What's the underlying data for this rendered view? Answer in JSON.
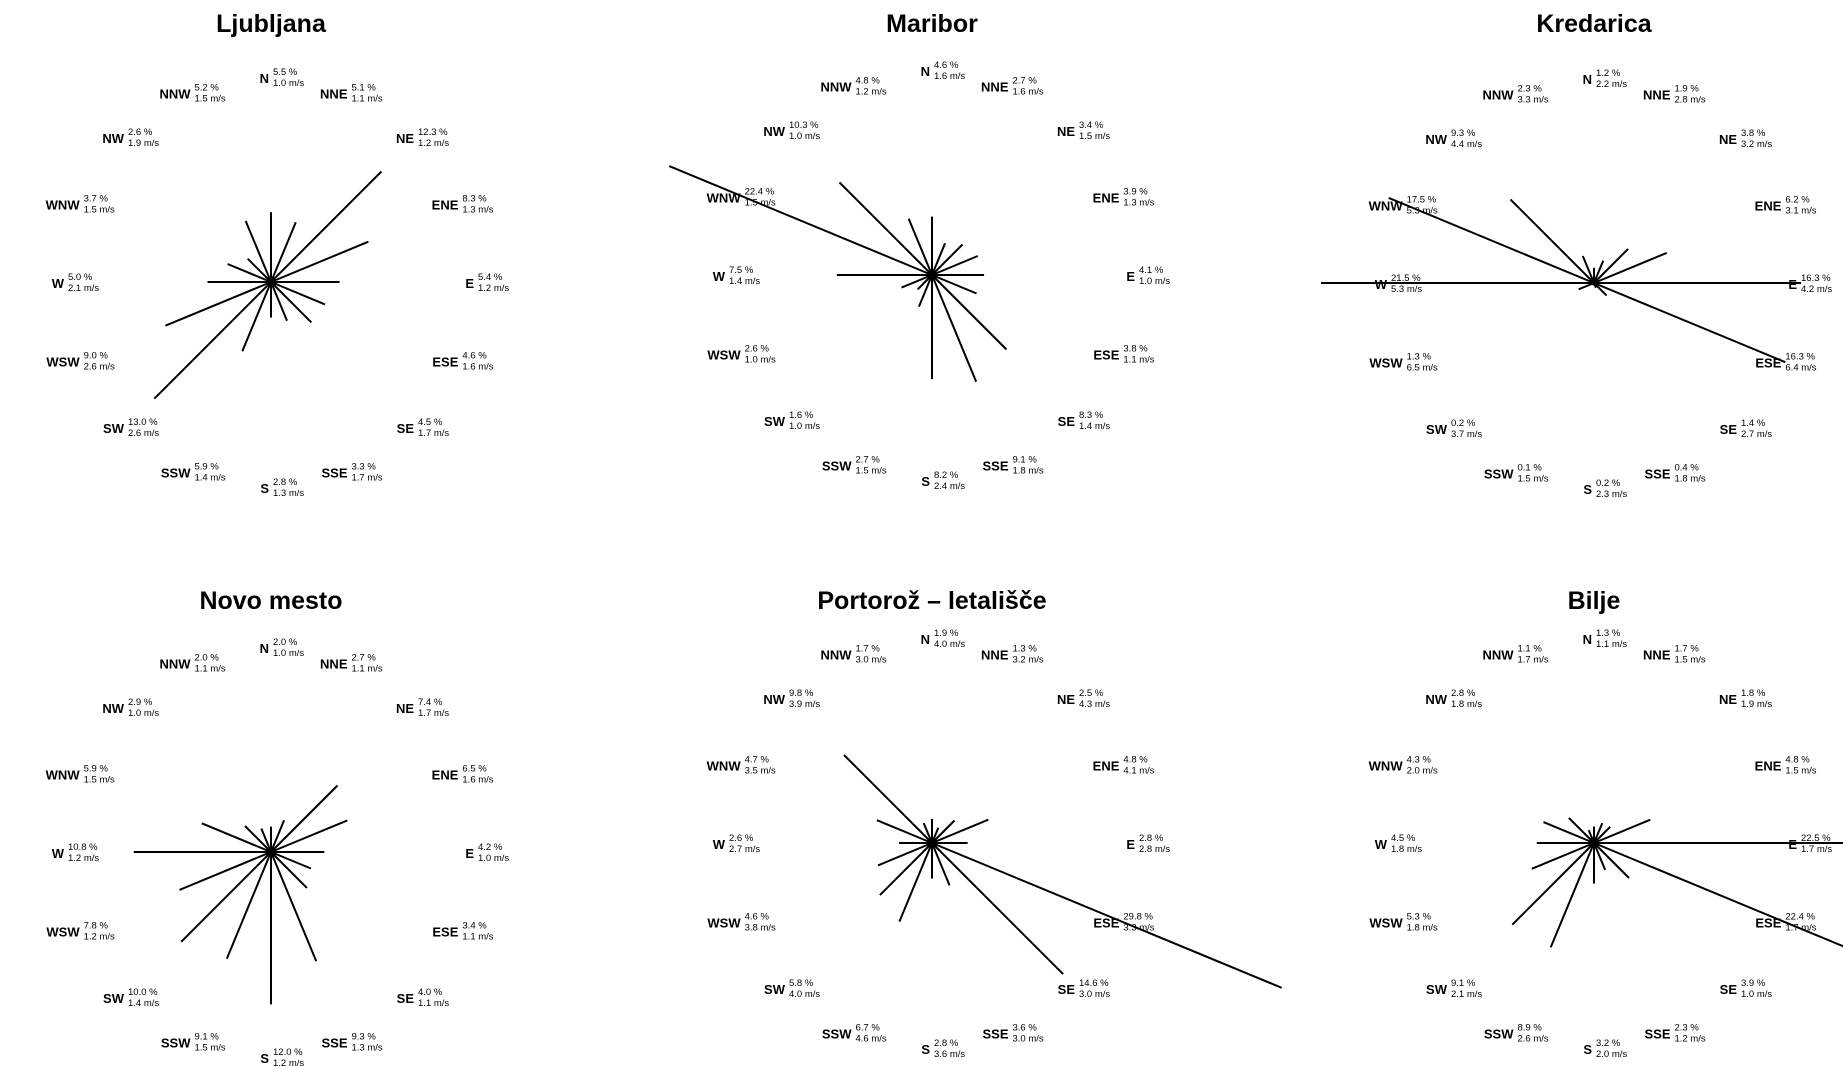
{
  "chart_data": [
    {
      "type": "wind_rose",
      "title": "Ljubljana",
      "directions": [
        {
          "dir": "N",
          "freq": 5.5,
          "freq_label": "5.5 %",
          "speed_label": "1.0 m/s"
        },
        {
          "dir": "NNE",
          "freq": 5.1,
          "freq_label": "5.1 %",
          "speed_label": "1.1 m/s"
        },
        {
          "dir": "NE",
          "freq": 12.3,
          "freq_label": "12.3 %",
          "speed_label": "1.2 m/s"
        },
        {
          "dir": "ENE",
          "freq": 8.3,
          "freq_label": "8.3 %",
          "speed_label": "1.3 m/s"
        },
        {
          "dir": "E",
          "freq": 5.4,
          "freq_label": "5.4 %",
          "speed_label": "1.2 m/s"
        },
        {
          "dir": "ESE",
          "freq": 4.6,
          "freq_label": "4.6 %",
          "speed_label": "1.6 m/s"
        },
        {
          "dir": "SE",
          "freq": 4.5,
          "freq_label": "4.5 %",
          "speed_label": "1.7 m/s"
        },
        {
          "dir": "SSE",
          "freq": 3.3,
          "freq_label": "3.3 %",
          "speed_label": "1.7 m/s"
        },
        {
          "dir": "S",
          "freq": 2.8,
          "freq_label": "2.8 %",
          "speed_label": "1.3 m/s"
        },
        {
          "dir": "SSW",
          "freq": 5.9,
          "freq_label": "5.9 %",
          "speed_label": "1.4 m/s"
        },
        {
          "dir": "SW",
          "freq": 13.0,
          "freq_label": "13.0 %",
          "speed_label": "2.6 m/s"
        },
        {
          "dir": "WSW",
          "freq": 9.0,
          "freq_label": "9.0 %",
          "speed_label": "2.6 m/s"
        },
        {
          "dir": "W",
          "freq": 5.0,
          "freq_label": "5.0 %",
          "speed_label": "2.1 m/s"
        },
        {
          "dir": "WNW",
          "freq": 3.7,
          "freq_label": "3.7 %",
          "speed_label": "1.5 m/s"
        },
        {
          "dir": "NW",
          "freq": 2.6,
          "freq_label": "2.6 %",
          "speed_label": "1.9 m/s"
        },
        {
          "dir": "NNW",
          "freq": 5.2,
          "freq_label": "5.2 %",
          "speed_label": "1.5 m/s"
        }
      ]
    },
    {
      "type": "wind_rose",
      "title": "Maribor",
      "directions": [
        {
          "dir": "N",
          "freq": 4.6,
          "freq_label": "4.6 %",
          "speed_label": "1.6 m/s"
        },
        {
          "dir": "NNE",
          "freq": 2.7,
          "freq_label": "2.7 %",
          "speed_label": "1.6 m/s"
        },
        {
          "dir": "NE",
          "freq": 3.4,
          "freq_label": "3.4 %",
          "speed_label": "1.5 m/s"
        },
        {
          "dir": "ENE",
          "freq": 3.9,
          "freq_label": "3.9 %",
          "speed_label": "1.3 m/s"
        },
        {
          "dir": "E",
          "freq": 4.1,
          "freq_label": "4.1 %",
          "speed_label": "1.0 m/s"
        },
        {
          "dir": "ESE",
          "freq": 3.8,
          "freq_label": "3.8 %",
          "speed_label": "1.1 m/s"
        },
        {
          "dir": "SE",
          "freq": 8.3,
          "freq_label": "8.3 %",
          "speed_label": "1.4 m/s"
        },
        {
          "dir": "SSE",
          "freq": 9.1,
          "freq_label": "9.1 %",
          "speed_label": "1.8 m/s"
        },
        {
          "dir": "S",
          "freq": 8.2,
          "freq_label": "8.2 %",
          "speed_label": "2.4 m/s"
        },
        {
          "dir": "SSW",
          "freq": 2.7,
          "freq_label": "2.7 %",
          "speed_label": "1.5 m/s"
        },
        {
          "dir": "SW",
          "freq": 1.6,
          "freq_label": "1.6 %",
          "speed_label": "1.0 m/s"
        },
        {
          "dir": "WSW",
          "freq": 2.6,
          "freq_label": "2.6 %",
          "speed_label": "1.0 m/s"
        },
        {
          "dir": "W",
          "freq": 7.5,
          "freq_label": "7.5 %",
          "speed_label": "1.4 m/s"
        },
        {
          "dir": "WNW",
          "freq": 22.4,
          "freq_label": "22.4 %",
          "speed_label": "1.5 m/s"
        },
        {
          "dir": "NW",
          "freq": 10.3,
          "freq_label": "10.3 %",
          "speed_label": "1.0 m/s"
        },
        {
          "dir": "NNW",
          "freq": 4.8,
          "freq_label": "4.8 %",
          "speed_label": "1.2 m/s"
        }
      ]
    },
    {
      "type": "wind_rose",
      "title": "Kredarica",
      "directions": [
        {
          "dir": "N",
          "freq": 1.2,
          "freq_label": "1.2 %",
          "speed_label": "2.2 m/s"
        },
        {
          "dir": "NNE",
          "freq": 1.9,
          "freq_label": "1.9 %",
          "speed_label": "2.8 m/s"
        },
        {
          "dir": "NE",
          "freq": 3.8,
          "freq_label": "3.8 %",
          "speed_label": "3.2 m/s"
        },
        {
          "dir": "ENE",
          "freq": 6.2,
          "freq_label": "6.2 %",
          "speed_label": "3.1 m/s"
        },
        {
          "dir": "E",
          "freq": 16.3,
          "freq_label": "16.3 %",
          "speed_label": "4.2 m/s"
        },
        {
          "dir": "ESE",
          "freq": 16.3,
          "freq_label": "16.3 %",
          "speed_label": "6.4 m/s"
        },
        {
          "dir": "SE",
          "freq": 1.4,
          "freq_label": "1.4 %",
          "speed_label": "2.7 m/s"
        },
        {
          "dir": "SSE",
          "freq": 0.4,
          "freq_label": "0.4 %",
          "speed_label": "1.8 m/s"
        },
        {
          "dir": "S",
          "freq": 0.2,
          "freq_label": "0.2 %",
          "speed_label": "2.3 m/s"
        },
        {
          "dir": "SSW",
          "freq": 0.1,
          "freq_label": "0.1 %",
          "speed_label": "1.5 m/s"
        },
        {
          "dir": "SW",
          "freq": 0.2,
          "freq_label": "0.2 %",
          "speed_label": "3.7 m/s"
        },
        {
          "dir": "WSW",
          "freq": 1.3,
          "freq_label": "1.3 %",
          "speed_label": "6.5 m/s"
        },
        {
          "dir": "W",
          "freq": 21.5,
          "freq_label": "21.5 %",
          "speed_label": "5.3 m/s"
        },
        {
          "dir": "WNW",
          "freq": 17.5,
          "freq_label": "17.5 %",
          "speed_label": "5.3 m/s"
        },
        {
          "dir": "NW",
          "freq": 9.3,
          "freq_label": "9.3 %",
          "speed_label": "4.4 m/s"
        },
        {
          "dir": "NNW",
          "freq": 2.3,
          "freq_label": "2.3 %",
          "speed_label": "3.3 m/s"
        }
      ]
    },
    {
      "type": "wind_rose",
      "title": "Novo mesto",
      "directions": [
        {
          "dir": "N",
          "freq": 2.0,
          "freq_label": "2.0 %",
          "speed_label": "1.0 m/s"
        },
        {
          "dir": "NNE",
          "freq": 2.7,
          "freq_label": "2.7 %",
          "speed_label": "1.1 m/s"
        },
        {
          "dir": "NE",
          "freq": 7.4,
          "freq_label": "7.4 %",
          "speed_label": "1.7 m/s"
        },
        {
          "dir": "ENE",
          "freq": 6.5,
          "freq_label": "6.5 %",
          "speed_label": "1.6 m/s"
        },
        {
          "dir": "E",
          "freq": 4.2,
          "freq_label": "4.2 %",
          "speed_label": "1.0 m/s"
        },
        {
          "dir": "ESE",
          "freq": 3.4,
          "freq_label": "3.4 %",
          "speed_label": "1.1 m/s"
        },
        {
          "dir": "SE",
          "freq": 4.0,
          "freq_label": "4.0 %",
          "speed_label": "1.1 m/s"
        },
        {
          "dir": "SSE",
          "freq": 9.3,
          "freq_label": "9.3 %",
          "speed_label": "1.3 m/s"
        },
        {
          "dir": "S",
          "freq": 12.0,
          "freq_label": "12.0 %",
          "speed_label": "1.2 m/s"
        },
        {
          "dir": "SSW",
          "freq": 9.1,
          "freq_label": "9.1 %",
          "speed_label": "1.5 m/s"
        },
        {
          "dir": "SW",
          "freq": 10.0,
          "freq_label": "10.0 %",
          "speed_label": "1.4 m/s"
        },
        {
          "dir": "WSW",
          "freq": 7.8,
          "freq_label": "7.8 %",
          "speed_label": "1.2 m/s"
        },
        {
          "dir": "W",
          "freq": 10.8,
          "freq_label": "10.8 %",
          "speed_label": "1.2 m/s"
        },
        {
          "dir": "WNW",
          "freq": 5.9,
          "freq_label": "5.9 %",
          "speed_label": "1.5 m/s"
        },
        {
          "dir": "NW",
          "freq": 2.9,
          "freq_label": "2.9 %",
          "speed_label": "1.0 m/s"
        },
        {
          "dir": "NNW",
          "freq": 2.0,
          "freq_label": "2.0 %",
          "speed_label": "1.1 m/s"
        }
      ]
    },
    {
      "type": "wind_rose",
      "title": "Portorož – letališče",
      "directions": [
        {
          "dir": "N",
          "freq": 1.9,
          "freq_label": "1.9 %",
          "speed_label": "4.0 m/s"
        },
        {
          "dir": "NNE",
          "freq": 1.3,
          "freq_label": "1.3 %",
          "speed_label": "3.2 m/s"
        },
        {
          "dir": "NE",
          "freq": 2.5,
          "freq_label": "2.5 %",
          "speed_label": "4.3 m/s"
        },
        {
          "dir": "ENE",
          "freq": 4.8,
          "freq_label": "4.8 %",
          "speed_label": "4.1 m/s"
        },
        {
          "dir": "E",
          "freq": 2.8,
          "freq_label": "2.8 %",
          "speed_label": "2.8 m/s"
        },
        {
          "dir": "ESE",
          "freq": 29.8,
          "freq_label": "29.8 %",
          "speed_label": "3.3 m/s"
        },
        {
          "dir": "SE",
          "freq": 14.6,
          "freq_label": "14.6 %",
          "speed_label": "3.0 m/s"
        },
        {
          "dir": "SSE",
          "freq": 3.6,
          "freq_label": "3.6 %",
          "speed_label": "3.0 m/s"
        },
        {
          "dir": "S",
          "freq": 2.8,
          "freq_label": "2.8 %",
          "speed_label": "3.6 m/s"
        },
        {
          "dir": "SSW",
          "freq": 6.7,
          "freq_label": "6.7 %",
          "speed_label": "4.6 m/s"
        },
        {
          "dir": "SW",
          "freq": 5.8,
          "freq_label": "5.8 %",
          "speed_label": "4.0 m/s"
        },
        {
          "dir": "WSW",
          "freq": 4.6,
          "freq_label": "4.6 %",
          "speed_label": "3.8 m/s"
        },
        {
          "dir": "W",
          "freq": 2.6,
          "freq_label": "2.6 %",
          "speed_label": "2.7 m/s"
        },
        {
          "dir": "WNW",
          "freq": 4.7,
          "freq_label": "4.7 %",
          "speed_label": "3.5 m/s"
        },
        {
          "dir": "NW",
          "freq": 9.8,
          "freq_label": "9.8 %",
          "speed_label": "3.9 m/s"
        },
        {
          "dir": "NNW",
          "freq": 1.7,
          "freq_label": "1.7 %",
          "speed_label": "3.0 m/s"
        }
      ]
    },
    {
      "type": "wind_rose",
      "title": "Bilje",
      "directions": [
        {
          "dir": "N",
          "freq": 1.3,
          "freq_label": "1.3 %",
          "speed_label": "1.1 m/s"
        },
        {
          "dir": "NNE",
          "freq": 1.7,
          "freq_label": "1.7 %",
          "speed_label": "1.5 m/s"
        },
        {
          "dir": "NE",
          "freq": 1.8,
          "freq_label": "1.8 %",
          "speed_label": "1.9 m/s"
        },
        {
          "dir": "ENE",
          "freq": 4.8,
          "freq_label": "4.8 %",
          "speed_label": "1.5 m/s"
        },
        {
          "dir": "E",
          "freq": 22.5,
          "freq_label": "22.5 %",
          "speed_label": "1.7 m/s"
        },
        {
          "dir": "ESE",
          "freq": 22.4,
          "freq_label": "22.4 %",
          "speed_label": "1.7 m/s"
        },
        {
          "dir": "SE",
          "freq": 3.9,
          "freq_label": "3.9 %",
          "speed_label": "1.0 m/s"
        },
        {
          "dir": "SSE",
          "freq": 2.3,
          "freq_label": "2.3 %",
          "speed_label": "1.2 m/s"
        },
        {
          "dir": "S",
          "freq": 3.2,
          "freq_label": "3.2 %",
          "speed_label": "2.0 m/s"
        },
        {
          "dir": "SSW",
          "freq": 8.9,
          "freq_label": "8.9 %",
          "speed_label": "2.6 m/s"
        },
        {
          "dir": "SW",
          "freq": 9.1,
          "freq_label": "9.1 %",
          "speed_label": "2.1 m/s"
        },
        {
          "dir": "WSW",
          "freq": 5.3,
          "freq_label": "5.3 %",
          "speed_label": "1.8 m/s"
        },
        {
          "dir": "W",
          "freq": 4.5,
          "freq_label": "4.5 %",
          "speed_label": "1.8 m/s"
        },
        {
          "dir": "WNW",
          "freq": 4.3,
          "freq_label": "4.3 %",
          "speed_label": "2.0 m/s"
        },
        {
          "dir": "NW",
          "freq": 2.8,
          "freq_label": "2.8 %",
          "speed_label": "1.8 m/s"
        },
        {
          "dir": "NNW",
          "freq": 1.1,
          "freq_label": "1.1 %",
          "speed_label": "1.7 m/s"
        }
      ]
    }
  ]
}
